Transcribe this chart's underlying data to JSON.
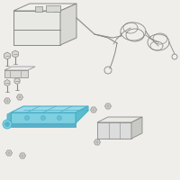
{
  "background_color": "#f0eeea",
  "line_color": "#888888",
  "line_color_dark": "#666666",
  "battery_tray_fill": "#7ecfe0",
  "battery_tray_edge": "#4ab0c8",
  "battery_tray_detail": "#5abccc",
  "bracket_fill": "#dcdcdc",
  "bracket_edge": "#888888",
  "battery_fill": "#e8e8e4",
  "battery_top_fill": "#f0f0ec",
  "battery_side_fill": "#d8d8d4",
  "battery_edge": "#888888"
}
